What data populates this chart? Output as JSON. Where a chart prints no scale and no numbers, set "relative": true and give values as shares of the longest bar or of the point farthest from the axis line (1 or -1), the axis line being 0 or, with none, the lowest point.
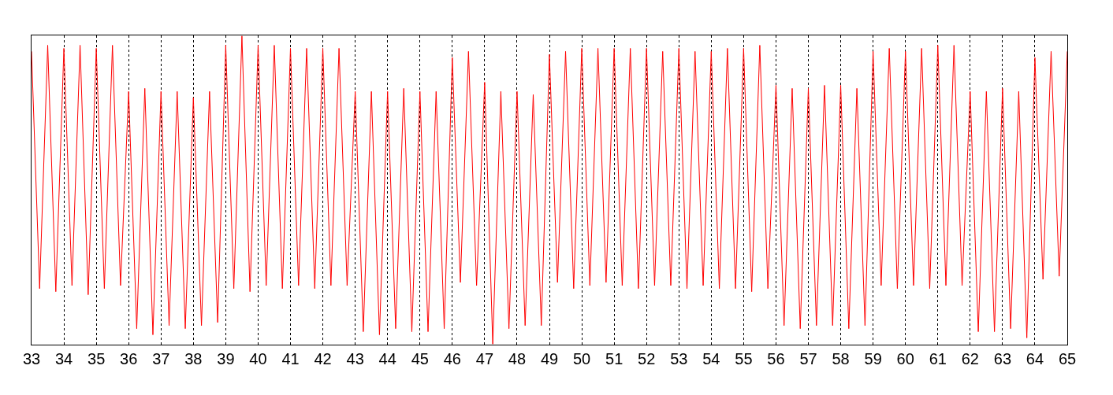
{
  "chart_data": {
    "type": "line",
    "relative": true,
    "grid": "x",
    "marker": "none",
    "line_style": "solid",
    "xlim": [
      33,
      65
    ],
    "xticks": [
      33,
      34,
      35,
      36,
      37,
      38,
      39,
      40,
      41,
      42,
      43,
      44,
      45,
      46,
      47,
      48,
      49,
      50,
      51,
      52,
      53,
      54,
      55,
      56,
      57,
      58,
      59,
      60,
      61,
      62,
      63,
      64,
      65
    ],
    "x": [
      33,
      33.25,
      33.5,
      33.75,
      34,
      34.25,
      34.5,
      34.75,
      35,
      35.25,
      35.5,
      35.75,
      36,
      36.25,
      36.5,
      36.75,
      37,
      37.25,
      37.5,
      37.75,
      38,
      38.25,
      38.5,
      38.75,
      39,
      39.25,
      39.5,
      39.75,
      40,
      40.25,
      40.5,
      40.75,
      41,
      41.25,
      41.5,
      41.75,
      42,
      42.25,
      42.5,
      42.75,
      43,
      43.25,
      43.5,
      43.75,
      44,
      44.25,
      44.5,
      44.75,
      45,
      45.25,
      45.5,
      45.75,
      46,
      46.25,
      46.5,
      46.75,
      47,
      47.25,
      47.5,
      47.75,
      48,
      48.25,
      48.5,
      48.75,
      49,
      49.25,
      49.5,
      49.75,
      50,
      50.25,
      50.5,
      50.75,
      51,
      51.25,
      51.5,
      51.75,
      52,
      52.25,
      52.5,
      52.75,
      53,
      53.25,
      53.5,
      53.75,
      54,
      54.25,
      54.5,
      54.75,
      55,
      55.25,
      55.5,
      55.75,
      56,
      56.25,
      56.5,
      56.75,
      57,
      57.25,
      57.5,
      57.75,
      58,
      58.25,
      58.5,
      58.75,
      59,
      59.25,
      59.5,
      59.75,
      60,
      60.25,
      60.5,
      60.75,
      61,
      61.25,
      61.5,
      61.75,
      62,
      62.25,
      62.5,
      62.75,
      63,
      63.25,
      63.5,
      63.75,
      64,
      64.25,
      64.5,
      64.75,
      65
    ],
    "series": [
      {
        "color": "#ff0000",
        "values": [
          0.95,
          0.18,
          0.97,
          0.17,
          0.96,
          0.19,
          0.97,
          0.16,
          0.96,
          0.18,
          0.97,
          0.19,
          0.82,
          0.05,
          0.83,
          0.03,
          0.82,
          0.06,
          0.82,
          0.05,
          0.8,
          0.06,
          0.82,
          0.07,
          0.97,
          0.18,
          1.0,
          0.17,
          0.97,
          0.19,
          0.97,
          0.18,
          0.96,
          0.19,
          0.96,
          0.18,
          0.96,
          0.19,
          0.96,
          0.19,
          0.82,
          0.04,
          0.82,
          0.03,
          0.82,
          0.05,
          0.83,
          0.04,
          0.82,
          0.04,
          0.82,
          0.05,
          0.93,
          0.2,
          0.95,
          0.19,
          0.85,
          0,
          0.82,
          0.05,
          0.82,
          0.06,
          0.81,
          0.06,
          0.94,
          0.2,
          0.95,
          0.18,
          0.96,
          0.19,
          0.96,
          0.2,
          0.96,
          0.19,
          0.96,
          0.18,
          0.96,
          0.19,
          0.95,
          0.19,
          0.96,
          0.18,
          0.95,
          0.19,
          0.95,
          0.18,
          0.96,
          0.18,
          0.96,
          0.17,
          0.97,
          0.18,
          0.84,
          0.06,
          0.83,
          0.05,
          0.83,
          0.06,
          0.84,
          0.06,
          0.84,
          0.05,
          0.83,
          0.06,
          0.95,
          0.19,
          0.96,
          0.18,
          0.95,
          0.19,
          0.96,
          0.18,
          0.97,
          0.19,
          0.97,
          0.19,
          0.82,
          0.04,
          0.82,
          0.04,
          0.83,
          0.05,
          0.82,
          0.02,
          0.93,
          0.21,
          0.95,
          0.22,
          0.95
        ]
      }
    ]
  }
}
